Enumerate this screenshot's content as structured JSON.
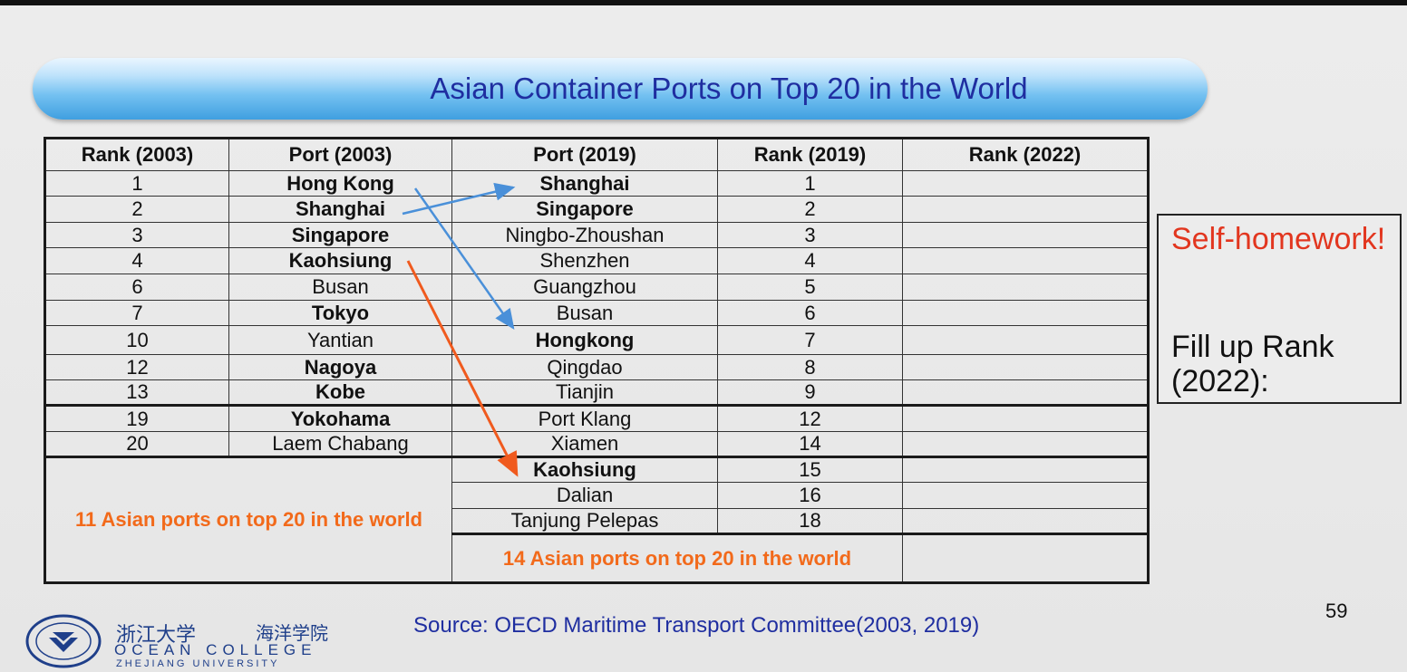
{
  "title": "Asian Container Ports on Top 20 in the World",
  "headers": [
    "Rank (2003)",
    "Port  (2003)",
    "Port (2019)",
    "Rank (2019)",
    "Rank (2022)"
  ],
  "rows": [
    {
      "r03": "1",
      "p03": "Hong Kong",
      "p19": "Shanghai",
      "r19": "1"
    },
    {
      "r03": "2",
      "p03": "Shanghai",
      "p19": "Singapore",
      "r19": "2"
    },
    {
      "r03": "3",
      "p03": "Singapore",
      "p19": "Ningbo-Zhoushan",
      "r19": "3"
    },
    {
      "r03": "4",
      "p03": "Kaohsiung",
      "p19": "Shenzhen",
      "r19": "4"
    },
    {
      "r03": "6",
      "p03": "Busan",
      "p19": "Guangzhou",
      "r19": "5"
    },
    {
      "r03": "7",
      "p03": "Tokyo",
      "p19": "Busan",
      "r19": "6"
    },
    {
      "r03": "10",
      "p03": "Yantian",
      "p19": "Hongkong",
      "r19": "7"
    },
    {
      "r03": "12",
      "p03": "Nagoya",
      "p19": "Qingdao",
      "r19": "8"
    },
    {
      "r03": "13",
      "p03": "Kobe",
      "p19": "Tianjin",
      "r19": "9"
    },
    {
      "r03": "19",
      "p03": "Yokohama",
      "p19": "Port Klang",
      "r19": "12"
    },
    {
      "r03": "20",
      "p03": "Laem Chabang",
      "p19": "Xiamen",
      "r19": "14"
    }
  ],
  "extra_rows": [
    {
      "p19": "Kaohsiung",
      "r19": "15"
    },
    {
      "p19": "Dalian",
      "r19": "16"
    },
    {
      "p19": "Tanjung Pelepas",
      "r19": "18"
    }
  ],
  "summary_2003": "11 Asian ports on top 20 in the world",
  "summary_2019": "14 Asian ports on top 20 in the world",
  "homework": {
    "title": "Self-homework!",
    "body": "Fill up Rank (2022):"
  },
  "source": "Source: OECD Maritime Transport Committee(2003, 2019)",
  "page_number": "59",
  "logo": {
    "chinese_name": "浙江大学",
    "chinese_college": "海洋学院",
    "english_name": "OCEAN  COLLEGE",
    "university": "ZHEJIANG UNIVERSITY"
  },
  "colors": {
    "title": "#1f2ea0",
    "highlight_red": "#e2361f",
    "summary_orange": "#f26a1b",
    "arrow_blue": "#4a90d9",
    "arrow_orange": "#f05a1e"
  }
}
